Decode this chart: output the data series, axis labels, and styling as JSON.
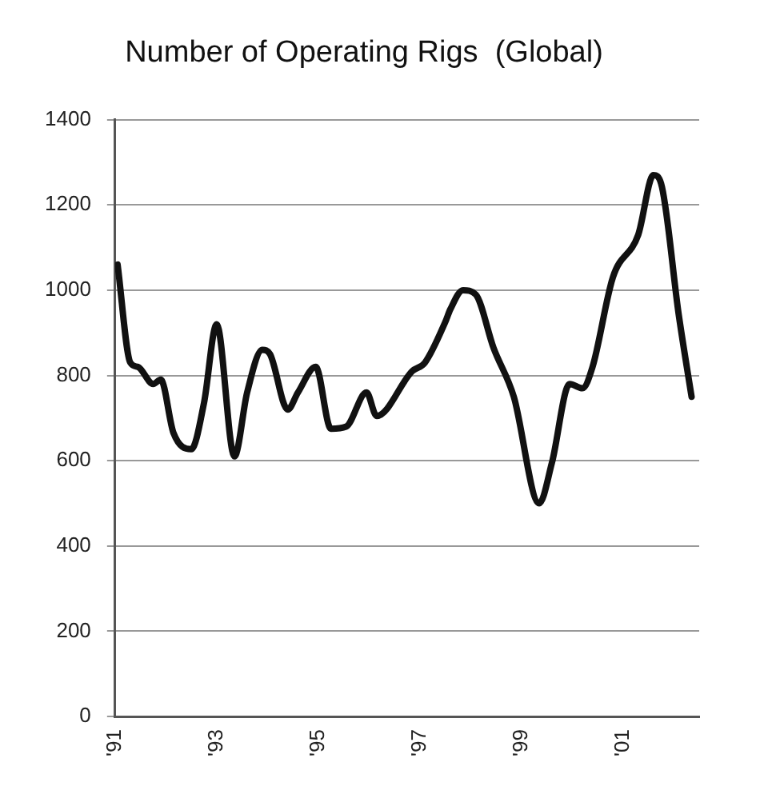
{
  "chart_data": {
    "type": "line",
    "title": "Number of Operating Rigs  (Global)",
    "x": [
      1991.05,
      1991.3,
      1991.45,
      1991.75,
      1991.9,
      1992.15,
      1992.5,
      1992.75,
      1993,
      1993.35,
      1993.6,
      1993.9,
      1994.05,
      1994.4,
      1994.6,
      1994.95,
      1995.25,
      1995.55,
      1995.95,
      1996.15,
      1996.85,
      1997.1,
      1997.5,
      1997.6,
      1997.85,
      1998.1,
      1998.45,
      1998.85,
      1999.35,
      1999.6,
      1999.95,
      2000.2,
      2000.4,
      2000.8,
      2001.3,
      2001.6,
      2001.75,
      2002.1,
      2002.35
    ],
    "series": [
      {
        "color": "#111111",
        "values": [
          1060,
          830,
          820,
          780,
          790,
          665,
          627,
          735,
          920,
          610,
          760,
          860,
          850,
          720,
          760,
          820,
          675,
          680,
          760,
          705,
          810,
          830,
          925,
          955,
          1000,
          990,
          865,
          750,
          500,
          595,
          780,
          770,
          820,
          1030,
          1130,
          1270,
          1250,
          940,
          750
        ]
      }
    ],
    "xlim": [
      1991,
      2002.5
    ],
    "xticks": [
      {
        "value": 1991,
        "label": "'91"
      },
      {
        "value": 1993,
        "label": "'93"
      },
      {
        "value": 1995,
        "label": "'95"
      },
      {
        "value": 1997,
        "label": "'97"
      },
      {
        "value": 1999,
        "label": "'99"
      },
      {
        "value": 2001,
        "label": "'01"
      }
    ],
    "ylim": [
      0,
      1400
    ],
    "yticks": [
      0,
      200,
      400,
      600,
      800,
      1000,
      1200,
      1400
    ],
    "grid": "y",
    "legend": false,
    "marker": "none",
    "line_style": "solid"
  }
}
